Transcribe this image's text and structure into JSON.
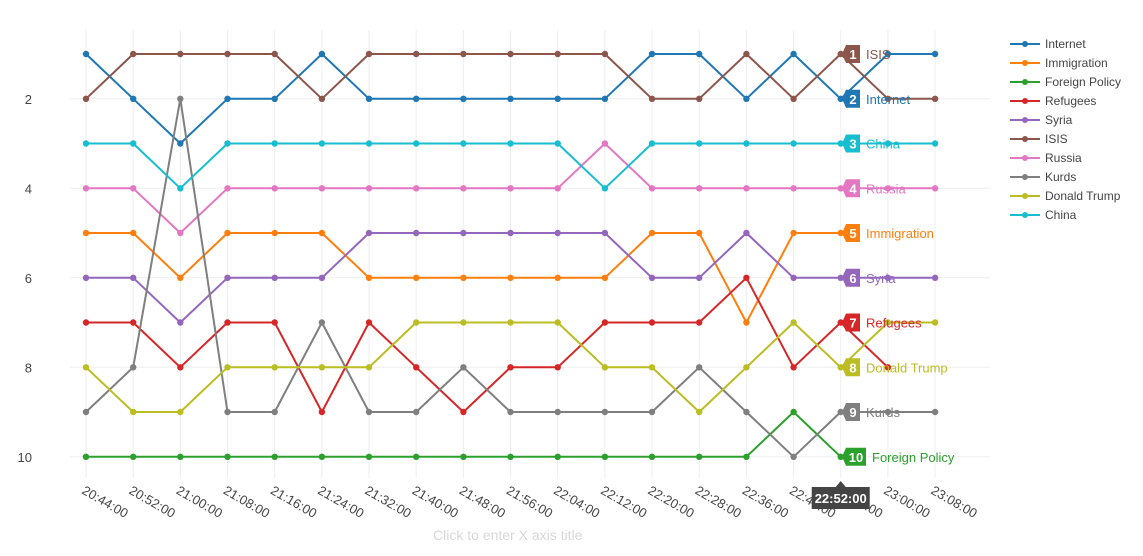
{
  "chart_data": {
    "type": "line",
    "categories": [
      "20:44:00",
      "20:52:00",
      "21:00:00",
      "21:08:00",
      "21:16:00",
      "21:24:00",
      "21:32:00",
      "21:40:00",
      "21:48:00",
      "21:56:00",
      "22:04:00",
      "22:12:00",
      "22:20:00",
      "22:28:00",
      "22:36:00",
      "22:44:00",
      "22:52:00",
      "23:00:00",
      "23:08:00"
    ],
    "y_ticks": [
      "2",
      "4",
      "6",
      "8",
      "10"
    ],
    "ylim": [
      10.55,
      0.45
    ],
    "y_reversed": true,
    "grid": true,
    "legend_position": "top-right",
    "xlabel": "Click to enter X axis title",
    "hover_label": "22:52:00",
    "series": [
      {
        "name": "Internet",
        "color": "#1f77b4",
        "values": [
          1,
          2,
          3,
          2,
          2,
          1,
          2,
          2,
          2,
          2,
          2,
          2,
          1,
          1,
          2,
          1,
          2,
          1,
          1
        ],
        "end_rank": "2",
        "end_label": "Internet"
      },
      {
        "name": "Immigration",
        "color": "#ff7f0e",
        "values": [
          5,
          5,
          6,
          5,
          5,
          5,
          6,
          6,
          6,
          6,
          6,
          6,
          5,
          5,
          7,
          5,
          5,
          null,
          null
        ],
        "end_rank": "5",
        "end_label": "Immigration"
      },
      {
        "name": "Foreign Policy",
        "color": "#2ca02c",
        "values": [
          10,
          10,
          10,
          10,
          10,
          10,
          10,
          10,
          10,
          10,
          10,
          10,
          10,
          10,
          10,
          9,
          10,
          null,
          null
        ],
        "end_rank": "10",
        "end_label": "Foreign Policy"
      },
      {
        "name": "Refugees",
        "color": "#d62728",
        "values": [
          7,
          7,
          8,
          7,
          7,
          9,
          7,
          8,
          9,
          8,
          8,
          7,
          7,
          7,
          6,
          8,
          7,
          8,
          null
        ],
        "end_rank": "7",
        "end_label": "Refugees"
      },
      {
        "name": "Syria",
        "color": "#9467bd",
        "values": [
          6,
          6,
          7,
          6,
          6,
          6,
          5,
          5,
          5,
          5,
          5,
          5,
          6,
          6,
          5,
          6,
          6,
          6,
          6
        ],
        "end_rank": "6",
        "end_label": "Syria"
      },
      {
        "name": "ISIS",
        "color": "#8c564b",
        "values": [
          2,
          1,
          1,
          1,
          1,
          2,
          1,
          1,
          1,
          1,
          1,
          1,
          2,
          2,
          1,
          2,
          1,
          2,
          2
        ],
        "end_rank": "1",
        "end_label": "ISIS"
      },
      {
        "name": "Russia",
        "color": "#e377c2",
        "values": [
          4,
          4,
          5,
          4,
          4,
          4,
          4,
          4,
          4,
          4,
          4,
          3,
          4,
          4,
          4,
          4,
          4,
          4,
          4
        ],
        "end_rank": "4",
        "end_label": "Russia"
      },
      {
        "name": "Kurds",
        "color": "#7f7f7f",
        "values": [
          9,
          8,
          2,
          9,
          9,
          7,
          9,
          9,
          8,
          9,
          9,
          9,
          9,
          8,
          9,
          10,
          9,
          9,
          9
        ],
        "end_rank": "9",
        "end_label": "Kurds"
      },
      {
        "name": "Donald Trump",
        "color": "#bcbd22",
        "values": [
          8,
          9,
          9,
          8,
          8,
          8,
          8,
          7,
          7,
          7,
          7,
          8,
          8,
          9,
          8,
          7,
          8,
          7,
          7
        ],
        "end_rank": "8",
        "end_label": "Donald Trump"
      },
      {
        "name": "China",
        "color": "#17becf",
        "values": [
          3,
          3,
          4,
          3,
          3,
          3,
          3,
          3,
          3,
          3,
          3,
          4,
          3,
          3,
          3,
          3,
          3,
          3,
          3
        ],
        "end_rank": "3",
        "end_label": "China"
      }
    ]
  }
}
